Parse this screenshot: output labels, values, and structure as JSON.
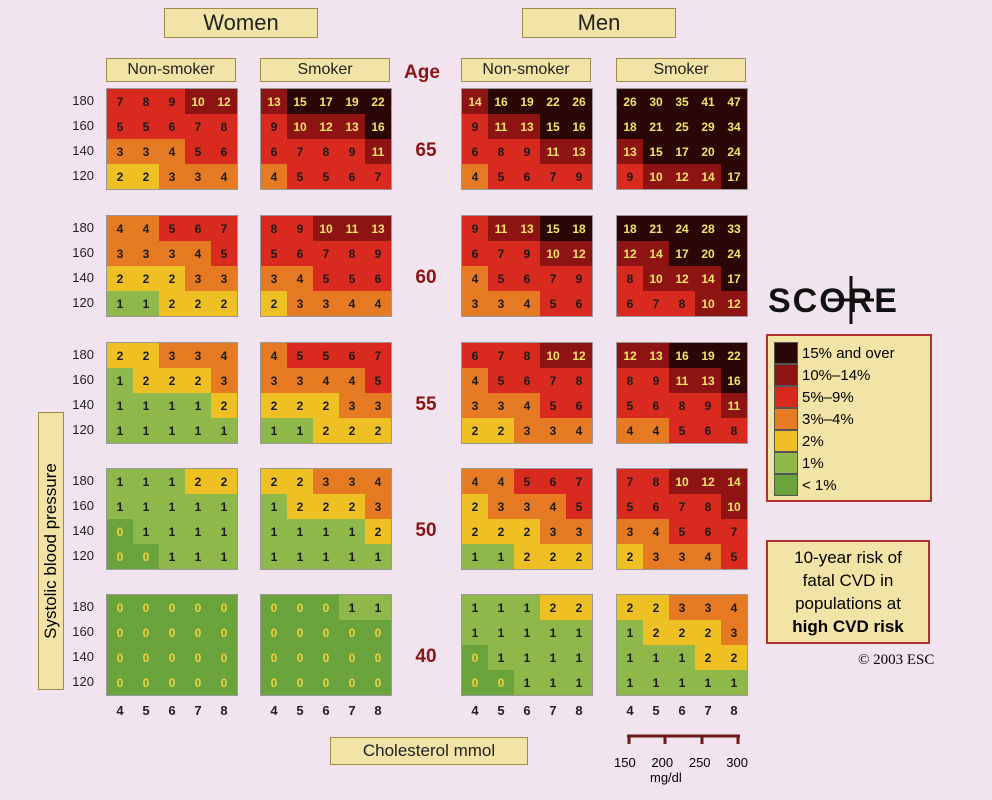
{
  "headers": {
    "women": "Women",
    "men": "Men",
    "non_smoker": "Non-smoker",
    "smoker": "Smoker",
    "age": "Age"
  },
  "axis": {
    "ylabel": "Systolic blood pressure",
    "xlabel": "Cholesterol mmol",
    "mgdl_label": "mg/dl",
    "mgdl_ticks": [
      "150",
      "200",
      "250",
      "300"
    ]
  },
  "logo": "SCORE",
  "note": {
    "line1": "10-year risk of",
    "line2": "fatal CVD in",
    "line3": "populations at",
    "line4": "high CVD risk"
  },
  "copyright": "© 2003 ESC",
  "legend": [
    {
      "label": "15% and over",
      "color": "#2a0606"
    },
    {
      "label": "10%–14%",
      "color": "#8e1414"
    },
    {
      "label": "5%–9%",
      "color": "#d82a1f"
    },
    {
      "label": "3%–4%",
      "color": "#e67a22"
    },
    {
      "label": "2%",
      "color": "#eec024"
    },
    {
      "label": "1%",
      "color": "#8fb84a"
    },
    {
      "label": "< 1%",
      "color": "#6aa33c"
    }
  ],
  "chart_data": {
    "type": "heatmap",
    "x_values": [
      4,
      5,
      6,
      7,
      8
    ],
    "y_values": [
      180,
      160,
      140,
      120
    ],
    "ages": [
      65,
      60,
      55,
      50,
      40
    ],
    "panels": [
      {
        "sex": "Women",
        "smoker": "Non-smoker",
        "rows": [
          [
            [
              7,
              8,
              9,
              10,
              12
            ],
            [
              5,
              5,
              6,
              7,
              8
            ],
            [
              3,
              3,
              4,
              5,
              6
            ],
            [
              2,
              2,
              3,
              3,
              4
            ]
          ],
          [
            [
              4,
              4,
              5,
              6,
              7
            ],
            [
              3,
              3,
              3,
              4,
              5
            ],
            [
              2,
              2,
              2,
              3,
              3
            ],
            [
              1,
              1,
              2,
              2,
              2
            ]
          ],
          [
            [
              2,
              2,
              3,
              3,
              4
            ],
            [
              1,
              2,
              2,
              2,
              3
            ],
            [
              1,
              1,
              1,
              1,
              2
            ],
            [
              1,
              1,
              1,
              1,
              1
            ]
          ],
          [
            [
              1,
              1,
              1,
              2,
              2
            ],
            [
              1,
              1,
              1,
              1,
              1
            ],
            [
              0,
              1,
              1,
              1,
              1
            ],
            [
              0,
              0,
              1,
              1,
              1
            ]
          ],
          [
            [
              0,
              0,
              0,
              0,
              0
            ],
            [
              0,
              0,
              0,
              0,
              0
            ],
            [
              0,
              0,
              0,
              0,
              0
            ],
            [
              0,
              0,
              0,
              0,
              0
            ]
          ]
        ]
      },
      {
        "sex": "Women",
        "smoker": "Smoker",
        "rows": [
          [
            [
              13,
              15,
              17,
              19,
              22
            ],
            [
              9,
              10,
              12,
              13,
              16
            ],
            [
              6,
              7,
              8,
              9,
              11
            ],
            [
              4,
              5,
              5,
              6,
              7
            ]
          ],
          [
            [
              8,
              9,
              10,
              11,
              13
            ],
            [
              5,
              6,
              7,
              8,
              9
            ],
            [
              3,
              4,
              5,
              5,
              6
            ],
            [
              2,
              3,
              3,
              4,
              4
            ]
          ],
          [
            [
              4,
              5,
              5,
              6,
              7
            ],
            [
              3,
              3,
              4,
              4,
              5
            ],
            [
              2,
              2,
              2,
              3,
              3
            ],
            [
              1,
              1,
              2,
              2,
              2
            ]
          ],
          [
            [
              2,
              2,
              3,
              3,
              4
            ],
            [
              1,
              2,
              2,
              2,
              3
            ],
            [
              1,
              1,
              1,
              1,
              2
            ],
            [
              1,
              1,
              1,
              1,
              1
            ]
          ],
          [
            [
              0,
              0,
              0,
              1,
              1
            ],
            [
              0,
              0,
              0,
              0,
              0
            ],
            [
              0,
              0,
              0,
              0,
              0
            ],
            [
              0,
              0,
              0,
              0,
              0
            ]
          ]
        ]
      },
      {
        "sex": "Men",
        "smoker": "Non-smoker",
        "rows": [
          [
            [
              14,
              16,
              19,
              22,
              26
            ],
            [
              9,
              11,
              13,
              15,
              16
            ],
            [
              6,
              8,
              9,
              11,
              13
            ],
            [
              4,
              5,
              6,
              7,
              9
            ]
          ],
          [
            [
              9,
              11,
              13,
              15,
              18
            ],
            [
              6,
              7,
              9,
              10,
              12
            ],
            [
              4,
              5,
              6,
              7,
              9
            ],
            [
              3,
              3,
              4,
              5,
              6
            ]
          ],
          [
            [
              6,
              7,
              8,
              10,
              12
            ],
            [
              4,
              5,
              6,
              7,
              8
            ],
            [
              3,
              3,
              4,
              5,
              6
            ],
            [
              2,
              2,
              3,
              3,
              4
            ]
          ],
          [
            [
              4,
              4,
              5,
              6,
              7
            ],
            [
              2,
              3,
              3,
              4,
              5
            ],
            [
              2,
              2,
              2,
              3,
              3
            ],
            [
              1,
              1,
              2,
              2,
              2
            ]
          ],
          [
            [
              1,
              1,
              1,
              2,
              2
            ],
            [
              1,
              1,
              1,
              1,
              1
            ],
            [
              0,
              1,
              1,
              1,
              1
            ],
            [
              0,
              0,
              1,
              1,
              1
            ]
          ]
        ]
      },
      {
        "sex": "Men",
        "smoker": "Smoker",
        "rows": [
          [
            [
              26,
              30,
              35,
              41,
              47
            ],
            [
              18,
              21,
              25,
              29,
              34
            ],
            [
              13,
              15,
              17,
              20,
              24
            ],
            [
              9,
              10,
              12,
              14,
              17
            ]
          ],
          [
            [
              18,
              21,
              24,
              28,
              33
            ],
            [
              12,
              14,
              17,
              20,
              24
            ],
            [
              8,
              10,
              12,
              14,
              17
            ],
            [
              6,
              7,
              8,
              10,
              12
            ]
          ],
          [
            [
              12,
              13,
              16,
              19,
              22
            ],
            [
              8,
              9,
              11,
              13,
              16
            ],
            [
              5,
              6,
              8,
              9,
              11
            ],
            [
              4,
              4,
              5,
              6,
              8
            ]
          ],
          [
            [
              7,
              8,
              10,
              12,
              14
            ],
            [
              5,
              6,
              7,
              8,
              10
            ],
            [
              3,
              4,
              5,
              6,
              7
            ],
            [
              2,
              3,
              3,
              4,
              5
            ]
          ],
          [
            [
              2,
              2,
              3,
              3,
              4
            ],
            [
              1,
              2,
              2,
              2,
              3
            ],
            [
              1,
              1,
              1,
              2,
              2
            ],
            [
              1,
              1,
              1,
              1,
              1
            ]
          ]
        ]
      }
    ]
  }
}
